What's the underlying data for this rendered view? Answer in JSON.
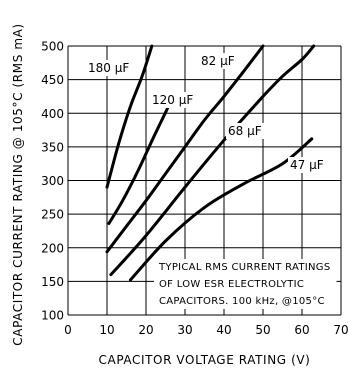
{
  "chart_data": {
    "type": "line",
    "xlabel": "CAPACITOR VOLTAGE RATING (V)",
    "ylabel": "CAPACITOR CURRENT RATING @ 105°C (RMS mA)",
    "xlim": [
      0,
      70
    ],
    "ylim": [
      100,
      500
    ],
    "x_ticks": [
      "0",
      "10",
      "20",
      "30",
      "40",
      "50",
      "60",
      "70"
    ],
    "y_ticks": [
      "100",
      "150",
      "200",
      "250",
      "300",
      "350",
      "400",
      "450",
      "500"
    ],
    "grid": true,
    "note_lines": [
      "TYPICAL RMS CURRENT RATINGS",
      "OF LOW ESR ELECTROLYTIC",
      "CAPACITORS. 100 kHz, @105°C"
    ],
    "series": [
      {
        "name": "180 µF",
        "x": [
          10,
          13,
          16,
          19,
          21.5
        ],
        "y": [
          290,
          355,
          410,
          455,
          500
        ]
      },
      {
        "name": "120 µF",
        "x": [
          10.5,
          14,
          18,
          22,
          25.5
        ],
        "y": [
          236,
          270,
          315,
          365,
          407
        ]
      },
      {
        "name": "82 µF",
        "x": [
          10,
          15,
          20,
          25,
          30,
          35,
          40,
          45,
          50
        ],
        "y": [
          194,
          232,
          270,
          310,
          350,
          390,
          425,
          462,
          500
        ]
      },
      {
        "name": "68 µF",
        "x": [
          11,
          20,
          30,
          40,
          50,
          55,
          60,
          63
        ],
        "y": [
          160,
          218,
          290,
          360,
          425,
          455,
          480,
          500
        ]
      },
      {
        "name": "47 µF",
        "x": [
          16,
          25,
          35,
          45,
          55,
          62.5
        ],
        "y": [
          152,
          210,
          260,
          295,
          325,
          362
        ]
      }
    ]
  }
}
